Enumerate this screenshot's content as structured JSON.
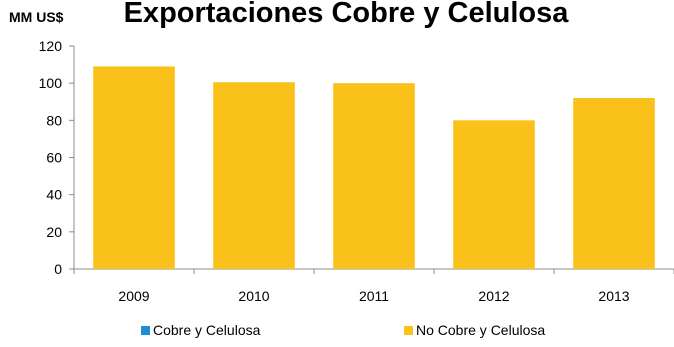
{
  "chart_data": {
    "type": "bar",
    "title": "Exportaciones Cobre y Celulosa",
    "ylabel": "MM US$",
    "xlabel": "",
    "categories": [
      "2009",
      "2010",
      "2011",
      "2012",
      "2013"
    ],
    "series": [
      {
        "name": "Cobre y Celulosa",
        "values": [
          0,
          0,
          0,
          0,
          0
        ],
        "color": "#1f8dd6"
      },
      {
        "name": "No Cobre y Celulosa",
        "values": [
          109,
          100.5,
          100,
          80,
          92
        ],
        "color": "#f9c11a"
      }
    ],
    "ylim": [
      0,
      120
    ],
    "yticks": [
      0,
      20,
      40,
      60,
      80,
      100,
      120
    ],
    "grid": false,
    "legend": "bottom"
  }
}
